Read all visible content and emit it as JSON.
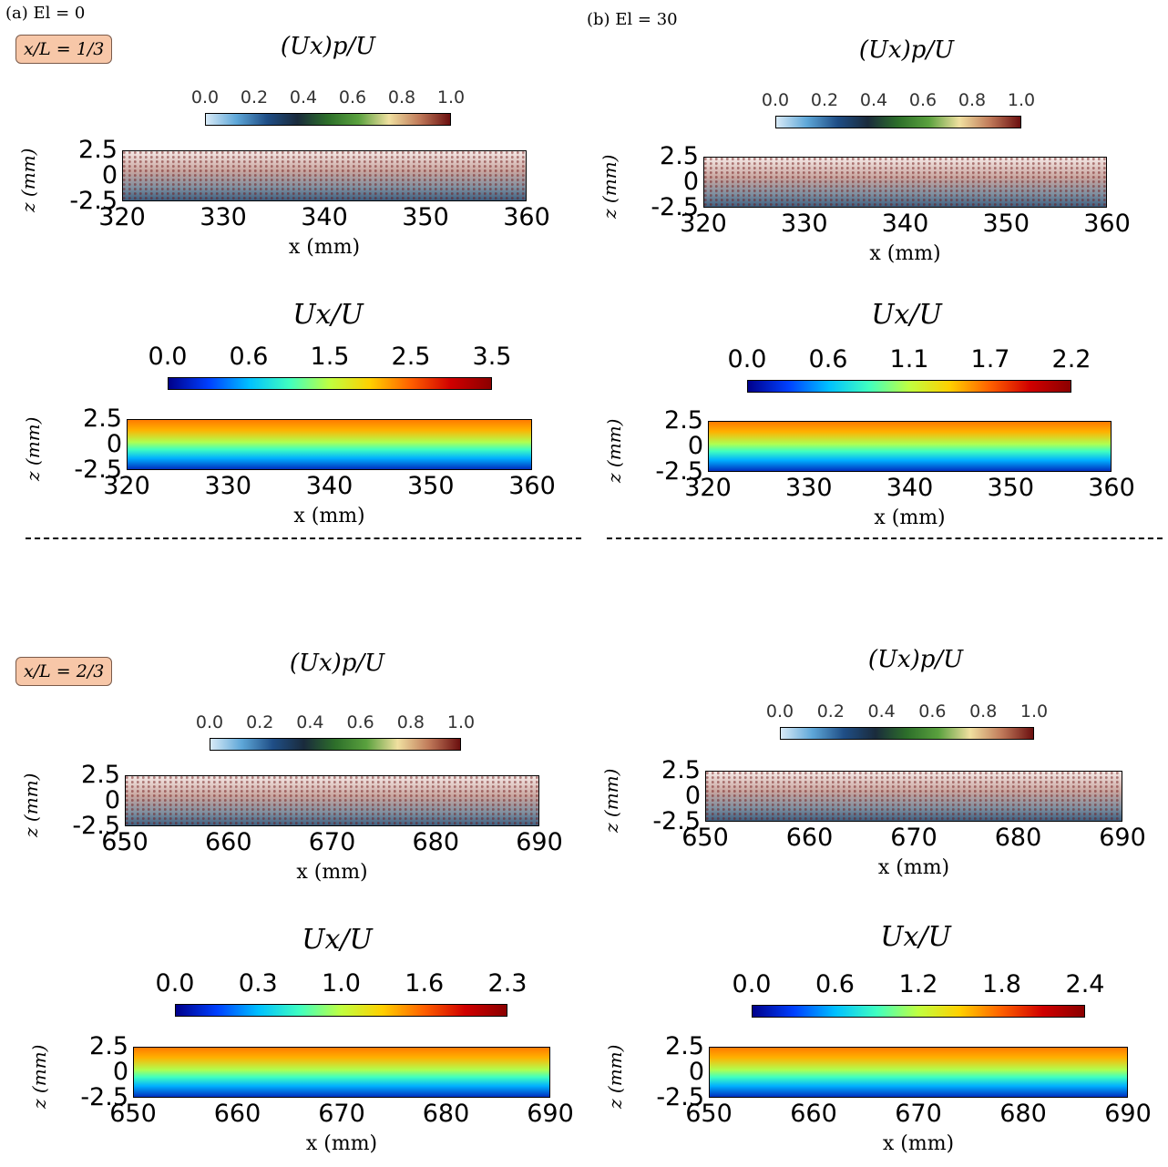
{
  "panels": {
    "a_label": "(a) El = 0",
    "b_label": "(b) El = 30"
  },
  "badges": {
    "row1": "x/L = 1/3",
    "row2": "x/L = 2/3"
  },
  "colorbars": {
    "particle_title": "(Ux)p/U",
    "fluid_title": "Ux/U",
    "particle_ticks": [
      "0.0",
      "0.2",
      "0.4",
      "0.6",
      "0.8",
      "1.0"
    ],
    "fluid_a1_ticks": [
      "0.0",
      "0.6",
      "1.5",
      "2.5",
      "3.5"
    ],
    "fluid_b1_ticks": [
      "0.0",
      "0.6",
      "1.1",
      "1.7",
      "2.2"
    ],
    "fluid_a2_ticks": [
      "0.0",
      "0.3",
      "1.0",
      "1.6",
      "2.3"
    ],
    "fluid_b2_ticks": [
      "0.0",
      "0.6",
      "1.2",
      "1.8",
      "2.4"
    ]
  },
  "axes": {
    "z_label": "z (mm)",
    "x_label": "x (mm)",
    "z_ticks": [
      "2.5",
      "0",
      "-2.5"
    ],
    "x_ticks_row1": [
      "320",
      "330",
      "340",
      "350",
      "360"
    ],
    "x_ticks_row2": [
      "650",
      "660",
      "670",
      "680",
      "690"
    ]
  },
  "colors": {
    "particle_map": [
      "#d8eaf7",
      "#5ea7d8",
      "#1f4e86",
      "#1a2b3c",
      "#2d6f2a",
      "#5aa13e",
      "#f0e0a0",
      "#c07a5a",
      "#6b0f0f"
    ],
    "fluid_map": [
      "#00008b",
      "#0040ff",
      "#00c0ff",
      "#40ffc0",
      "#c0ff40",
      "#ffd000",
      "#ff6000",
      "#d00000",
      "#8b0000"
    ],
    "badge": "#f7c7a8"
  }
}
